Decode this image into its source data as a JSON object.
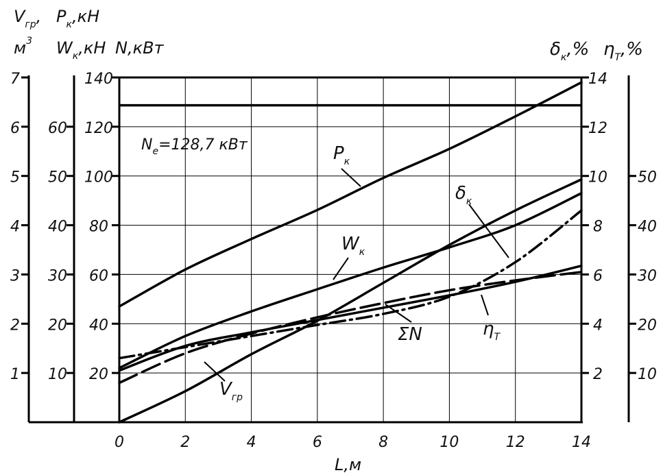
{
  "chart_data": {
    "type": "line",
    "x": {
      "label": "L,м",
      "ticks": [
        "0",
        "2",
        "4",
        "6",
        "8",
        "10",
        "12",
        "14"
      ],
      "range": [
        0,
        14
      ]
    },
    "axes": {
      "v_gr": {
        "label_main": "V",
        "label_sub": "гр",
        "label_suffix": ",",
        "unit_main": "м",
        "unit_sup": "3",
        "range": [
          0,
          7
        ],
        "ticks": [
          "1",
          "2",
          "3",
          "4",
          "5",
          "6",
          "7"
        ]
      },
      "p_w": {
        "label_p_main": "P",
        "label_p_sub": "к",
        "label_p_suffix": ",кН",
        "label_w_main": "W",
        "label_w_sub": "к",
        "label_w_suffix": ",кН",
        "range": [
          0,
          70
        ],
        "ticks": [
          "10",
          "20",
          "30",
          "40",
          "50",
          "60"
        ]
      },
      "n": {
        "label": "N,кВт",
        "range": [
          0,
          140
        ],
        "ticks": [
          "20",
          "40",
          "60",
          "80",
          "100",
          "120",
          "140"
        ]
      },
      "delta": {
        "label_main": "δ",
        "label_sub": "к",
        "label_suffix": ",%",
        "range": [
          0,
          14
        ],
        "ticks": [
          "2",
          "4",
          "6",
          "8",
          "10",
          "12",
          "14"
        ]
      },
      "eta": {
        "label_main": "η",
        "label_sub": "Т",
        "label_suffix": ",%",
        "range": [
          0,
          70
        ],
        "ticks": [
          "10",
          "20",
          "30",
          "40",
          "50"
        ]
      }
    },
    "grid": true,
    "ne_line": {
      "value": 128.7,
      "label_main": "N",
      "label_sub": "е",
      "label_rest": "=128,7 кВт"
    },
    "series": [
      {
        "name": "P",
        "sub": "к",
        "axis": "p_w",
        "style": "solid",
        "x": [
          0,
          2,
          4,
          6,
          8,
          10,
          12,
          14
        ],
        "y": [
          23.5,
          31,
          37.2,
          43.1,
          49.6,
          55.5,
          62.1,
          69
        ]
      },
      {
        "name": "W",
        "sub": "к",
        "axis": "p_w",
        "style": "solid",
        "x": [
          0,
          2,
          4,
          6,
          8,
          10,
          12,
          14
        ],
        "y": [
          11,
          17.5,
          22.5,
          27,
          31.4,
          35.5,
          40,
          46.5
        ]
      },
      {
        "name": "V",
        "sub": "гр",
        "axis": "v_gr",
        "style": "solid",
        "x": [
          0,
          2,
          4,
          6,
          8,
          10,
          12,
          14
        ],
        "y": [
          0,
          0.63,
          1.38,
          2.06,
          2.83,
          3.6,
          4.3,
          4.93
        ]
      },
      {
        "name": "ΣN",
        "axis": "n",
        "style": "solid",
        "x": [
          0,
          2,
          4,
          6,
          8,
          10,
          12,
          14
        ],
        "y": [
          21,
          31,
          36.5,
          41.5,
          46.5,
          51.5,
          57,
          63.5
        ]
      },
      {
        "name": "δ",
        "sub": "к",
        "axis": "delta",
        "style": "dash-dot",
        "x": [
          0,
          2,
          4,
          6,
          8,
          10,
          12,
          14
        ],
        "y": [
          2.6,
          3.05,
          3.5,
          3.95,
          4.4,
          5.1,
          6.5,
          8.6
        ]
      },
      {
        "name": "η",
        "sub": "Т",
        "axis": "eta",
        "style": "long-dash",
        "x": [
          0,
          2,
          4,
          6,
          8,
          10,
          12,
          14
        ],
        "y": [
          8,
          14,
          18,
          21.3,
          24.2,
          26.8,
          28.8,
          30.5
        ]
      }
    ]
  }
}
